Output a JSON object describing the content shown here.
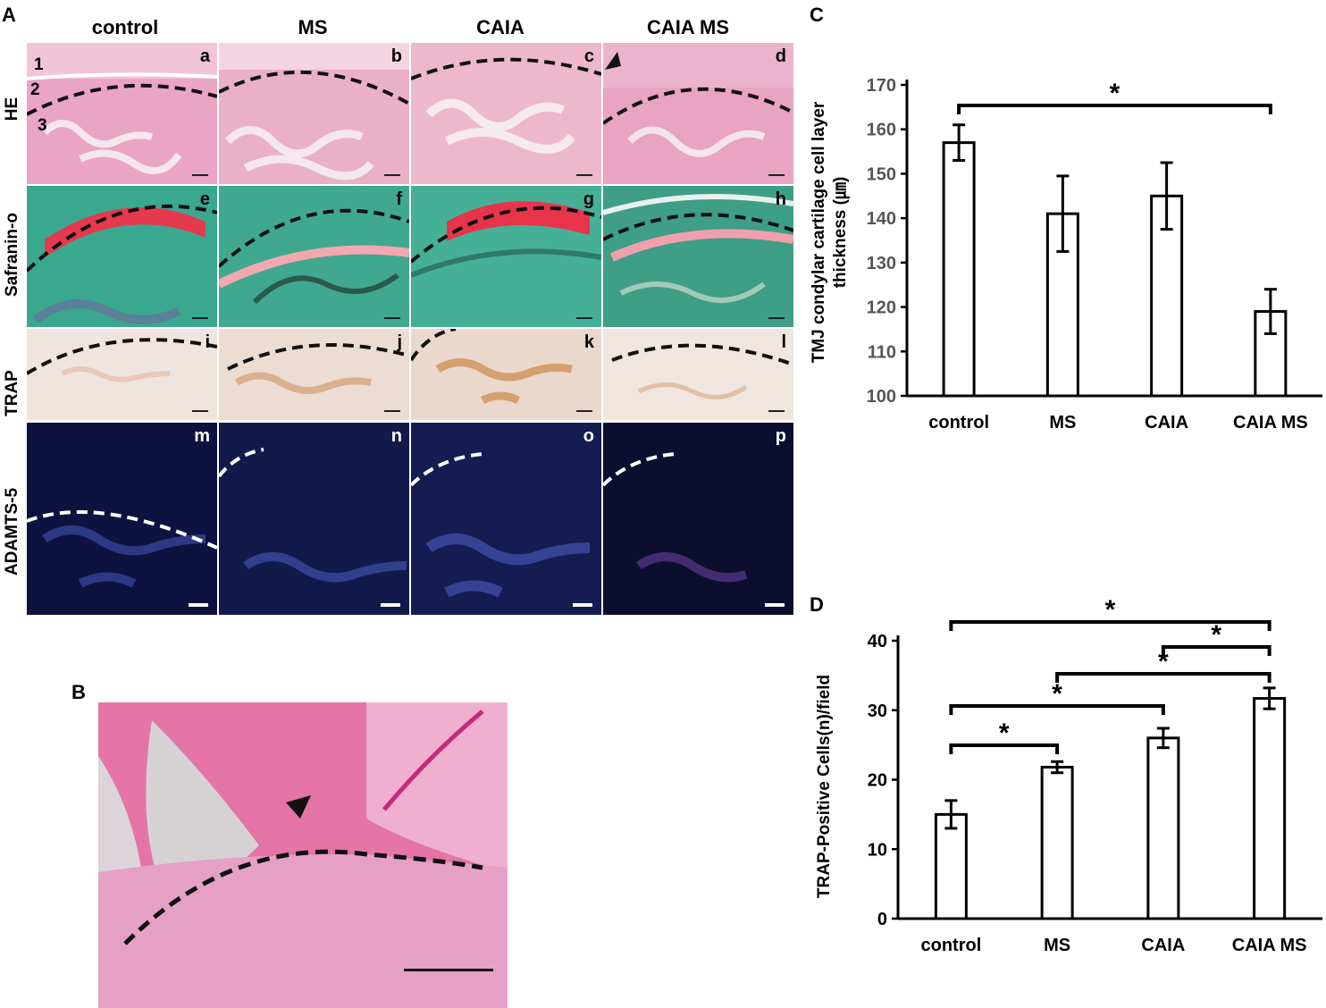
{
  "panels": {
    "A": "A",
    "B": "B",
    "C": "C",
    "D": "D"
  },
  "columns": [
    "control",
    "MS",
    "CAIA",
    "CAIA MS"
  ],
  "rows": [
    {
      "label": "HE",
      "tiles": [
        "a",
        "b",
        "c",
        "d"
      ]
    },
    {
      "label": "Safranin-o",
      "tiles": [
        "e",
        "f",
        "g",
        "h"
      ]
    },
    {
      "label": "TRAP",
      "tiles": [
        "i",
        "j",
        "k",
        "l"
      ]
    },
    {
      "label": "ADAMTS-5",
      "tiles": [
        "m",
        "n",
        "o",
        "p"
      ]
    }
  ],
  "layers": [
    "1",
    "2",
    "3"
  ],
  "chart_data": [
    {
      "type": "bar",
      "panel": "C",
      "categories": [
        "control",
        "MS",
        "CAIA",
        "CAIA MS"
      ],
      "values": [
        157,
        141,
        145,
        119
      ],
      "errors": [
        4,
        8.5,
        7.5,
        5
      ],
      "ylabel_line1": "TMJ condylar cartilage cell layer",
      "ylabel_line2": "thickness (㎛)",
      "ylim": [
        100,
        170
      ],
      "yticks": [
        100,
        110,
        120,
        130,
        140,
        150,
        160,
        170
      ],
      "significance": [
        {
          "from": "control",
          "to": "CAIA MS",
          "mark": "*"
        }
      ]
    },
    {
      "type": "bar",
      "panel": "D",
      "categories": [
        "control",
        "MS",
        "CAIA",
        "CAIA MS"
      ],
      "values": [
        15,
        21.8,
        26,
        31.7
      ],
      "errors": [
        2,
        0.8,
        1.4,
        1.5
      ],
      "ylabel": "TRAP-Positive Cells(n)/field",
      "ylim": [
        0,
        40
      ],
      "yticks": [
        0,
        10,
        20,
        30,
        40
      ],
      "significance": [
        {
          "from": "control",
          "to": "CAIA MS",
          "mark": "*"
        },
        {
          "from": "CAIA",
          "to": "CAIA MS",
          "mark": "*"
        },
        {
          "from": "MS",
          "to": "CAIA MS",
          "mark": "*"
        },
        {
          "from": "control",
          "to": "CAIA",
          "mark": "*"
        },
        {
          "from": "control",
          "to": "MS",
          "mark": "*"
        }
      ]
    }
  ]
}
